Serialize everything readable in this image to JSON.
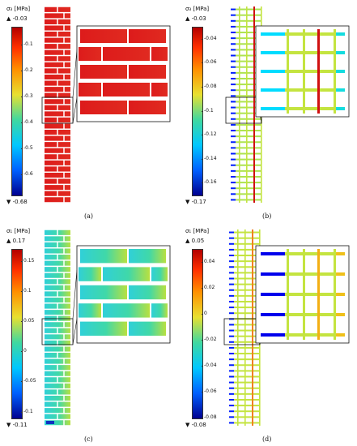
{
  "figure": {
    "panels": [
      {
        "id": "a",
        "symbol": "σ₃ [MPa]",
        "max_label": "▲ -0.03",
        "min_label": "▼ -0.68",
        "ticks": [
          "-0.1",
          "-0.2",
          "-0.3",
          "-0.4",
          "-0.5",
          "-0.6"
        ],
        "tick_values": [
          -0.1,
          -0.2,
          -0.3,
          -0.4,
          -0.5,
          -0.6
        ],
        "range": [
          -0.68,
          -0.03
        ],
        "caption": "(a)",
        "pattern": "solid-brick"
      },
      {
        "id": "b",
        "symbol": "σ₃ [MPa]",
        "max_label": "▲ -0.03",
        "min_label": "▼ -0.17",
        "ticks": [
          "-0.04",
          "-0.06",
          "-0.08",
          "-0.1",
          "-0.12",
          "-0.14",
          "-0.16"
        ],
        "tick_values": [
          -0.04,
          -0.06,
          -0.08,
          -0.1,
          -0.12,
          -0.14,
          -0.16
        ],
        "range": [
          -0.17,
          -0.03
        ],
        "caption": "(b)",
        "pattern": "mortar-joints"
      },
      {
        "id": "c",
        "symbol": "σ₁ [MPa]",
        "max_label": "▲ 0.17",
        "min_label": "▼ -0.11",
        "ticks": [
          "0.15",
          "0.1",
          "0.05",
          "0",
          "-0.05",
          "-0.1"
        ],
        "tick_values": [
          0.15,
          0.1,
          0.05,
          0,
          -0.05,
          -0.1
        ],
        "range": [
          -0.11,
          0.17
        ],
        "caption": "(c)",
        "pattern": "gradient-brick"
      },
      {
        "id": "d",
        "symbol": "σ₁ [MPa]",
        "max_label": "▲ 0.05",
        "min_label": "▼ -0.08",
        "ticks": [
          "0.04",
          "0.02",
          "0",
          "-0.02",
          "-0.04",
          "-0.06",
          "-0.08"
        ],
        "tick_values": [
          0.04,
          0.02,
          0,
          -0.02,
          -0.04,
          -0.06,
          -0.08
        ],
        "range": [
          -0.08,
          0.05
        ],
        "caption": "(d)",
        "pattern": "mortar-joints"
      }
    ]
  }
}
